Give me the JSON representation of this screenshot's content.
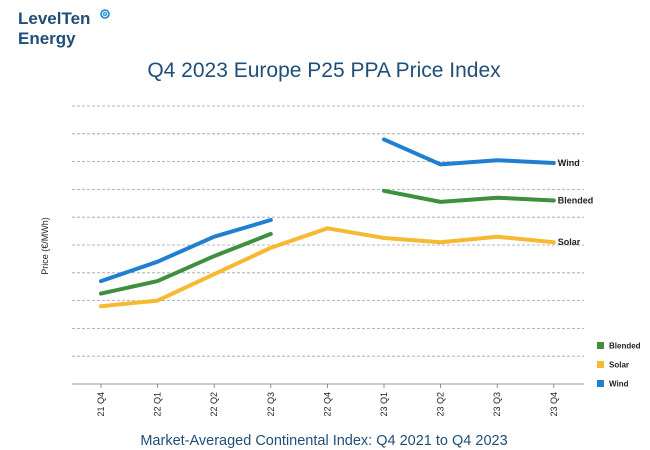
{
  "logo": {
    "line1": "LevelTen",
    "line2": "Energy"
  },
  "chart_data": {
    "type": "line",
    "title": "Q4 2023 Europe P25 PPA Price Index",
    "subtitle": "Market-Averaged Continental Index: Q4 2021 to Q4 2023",
    "ylabel": "Price (€/MWh)",
    "xlabel": "",
    "ylim": [
      0,
      10
    ],
    "grid": true,
    "legend_position": "bottom-right",
    "categories": [
      "21 Q4",
      "22 Q1",
      "22 Q2",
      "22 Q3",
      "22 Q4",
      "23 Q1",
      "23 Q2",
      "23 Q3",
      "23 Q4"
    ],
    "series": [
      {
        "name": "Wind",
        "color": "#1f7fd0",
        "end_label": "Wind",
        "segments": [
          [
            [
              0,
              3.7
            ],
            [
              1,
              4.4
            ],
            [
              2,
              5.3
            ],
            [
              3,
              5.9
            ]
          ],
          [
            [
              5,
              8.8
            ],
            [
              6,
              7.9
            ],
            [
              7,
              8.05
            ],
            [
              8,
              7.95
            ]
          ]
        ]
      },
      {
        "name": "Blended",
        "color": "#3f8f3f",
        "end_label": "Blended",
        "segments": [
          [
            [
              0,
              3.25
            ],
            [
              1,
              3.7
            ],
            [
              2,
              4.6
            ],
            [
              3,
              5.4
            ]
          ],
          [
            [
              5,
              6.95
            ],
            [
              6,
              6.55
            ],
            [
              7,
              6.7
            ],
            [
              8,
              6.6
            ]
          ]
        ]
      },
      {
        "name": "Solar",
        "color": "#f5b932",
        "end_label": "Solar",
        "segments": [
          [
            [
              0,
              2.8
            ],
            [
              1,
              3.0
            ],
            [
              2,
              3.95
            ],
            [
              3,
              4.9
            ],
            [
              4,
              5.6
            ],
            [
              5,
              5.25
            ],
            [
              6,
              5.1
            ],
            [
              7,
              5.3
            ],
            [
              8,
              5.1
            ]
          ]
        ]
      }
    ],
    "legend": [
      "Blended",
      "Solar",
      "Wind"
    ]
  }
}
